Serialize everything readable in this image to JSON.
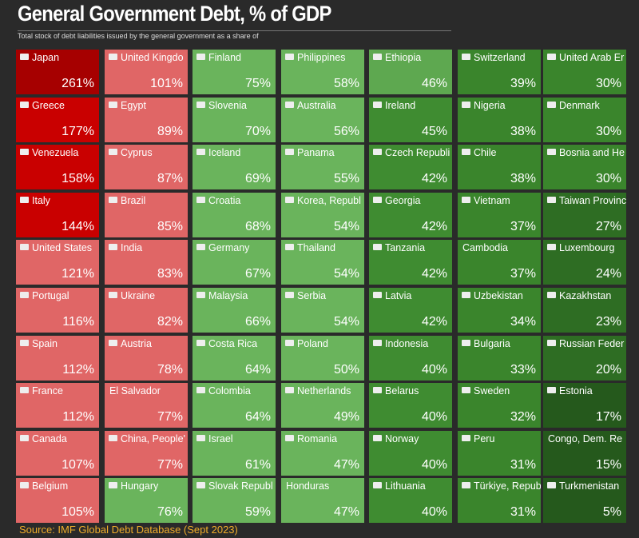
{
  "header": {
    "title": "General Government Debt, % of GDP",
    "subtitle": "Total stock of debt liabilities issued by the general government as a share of"
  },
  "grid": {
    "columns": [
      [
        {
          "name": "Japan",
          "value": "261%",
          "color": "#a60000"
        },
        {
          "name": "Greece",
          "value": "177%",
          "color": "#c90000"
        },
        {
          "name": "Venezuela",
          "value": "158%",
          "color": "#c90000"
        },
        {
          "name": "Italy",
          "value": "144%",
          "color": "#c90000"
        },
        {
          "name": "United States",
          "value": "121%",
          "color": "#e06666"
        },
        {
          "name": "Portugal",
          "value": "116%",
          "color": "#e06666"
        },
        {
          "name": "Spain",
          "value": "112%",
          "color": "#e06666"
        },
        {
          "name": "France",
          "value": "112%",
          "color": "#e06666"
        },
        {
          "name": "Canada",
          "value": "107%",
          "color": "#e06666"
        },
        {
          "name": "Belgium",
          "value": "105%",
          "color": "#e06666"
        }
      ],
      [
        {
          "name": "United Kingdo",
          "value": "101%",
          "color": "#e06666"
        },
        {
          "name": "Egypt",
          "value": "89%",
          "color": "#e06666"
        },
        {
          "name": "Cyprus",
          "value": "87%",
          "color": "#e06666"
        },
        {
          "name": "Brazil",
          "value": "85%",
          "color": "#e06666"
        },
        {
          "name": "India",
          "value": "83%",
          "color": "#e06666"
        },
        {
          "name": "Ukraine",
          "value": "82%",
          "color": "#e06666"
        },
        {
          "name": "Austria",
          "value": "78%",
          "color": "#e06666"
        },
        {
          "name": "El Salvador",
          "value": "77%",
          "color": "#e06666"
        },
        {
          "name": "China, People'",
          "value": "77%",
          "color": "#e06666"
        },
        {
          "name": "Hungary",
          "value": "76%",
          "color": "#6ab45c"
        }
      ],
      [
        {
          "name": "Finland",
          "value": "75%",
          "color": "#6ab45c"
        },
        {
          "name": "Slovenia",
          "value": "70%",
          "color": "#6ab45c"
        },
        {
          "name": "Iceland",
          "value": "69%",
          "color": "#6ab45c"
        },
        {
          "name": "Croatia",
          "value": "68%",
          "color": "#6ab45c"
        },
        {
          "name": "Germany",
          "value": "67%",
          "color": "#6ab45c"
        },
        {
          "name": "Malaysia",
          "value": "66%",
          "color": "#6ab45c"
        },
        {
          "name": "Costa Rica",
          "value": "64%",
          "color": "#6ab45c"
        },
        {
          "name": "Colombia",
          "value": "64%",
          "color": "#6ab45c"
        },
        {
          "name": "Israel",
          "value": "61%",
          "color": "#6ab45c"
        },
        {
          "name": "Slovak Republ",
          "value": "59%",
          "color": "#6ab45c"
        }
      ],
      [
        {
          "name": "Philippines",
          "value": "58%",
          "color": "#6ab45c"
        },
        {
          "name": "Australia",
          "value": "56%",
          "color": "#6ab45c"
        },
        {
          "name": "Panama",
          "value": "55%",
          "color": "#6ab45c"
        },
        {
          "name": "Korea, Republ",
          "value": "54%",
          "color": "#6ab45c"
        },
        {
          "name": "Thailand",
          "value": "54%",
          "color": "#6ab45c"
        },
        {
          "name": "Serbia",
          "value": "54%",
          "color": "#6ab45c"
        },
        {
          "name": "Poland",
          "value": "50%",
          "color": "#6ab45c"
        },
        {
          "name": "Netherlands",
          "value": "49%",
          "color": "#6ab45c"
        },
        {
          "name": "Romania",
          "value": "47%",
          "color": "#6ab45c"
        },
        {
          "name": "Honduras",
          "value": "47%",
          "color": "#6ab45c"
        }
      ],
      [
        {
          "name": "Ethiopia",
          "value": "46%",
          "color": "#5ea850"
        },
        {
          "name": "Ireland",
          "value": "45%",
          "color": "#3f8c31"
        },
        {
          "name": "Czech Republi",
          "value": "42%",
          "color": "#3f8c31"
        },
        {
          "name": "Georgia",
          "value": "42%",
          "color": "#3f8c31"
        },
        {
          "name": "Tanzania",
          "value": "42%",
          "color": "#3f8c31"
        },
        {
          "name": "Latvia",
          "value": "42%",
          "color": "#3f8c31"
        },
        {
          "name": "Indonesia",
          "value": "40%",
          "color": "#3f8c31"
        },
        {
          "name": "Belarus",
          "value": "40%",
          "color": "#3f8c31"
        },
        {
          "name": "Norway",
          "value": "40%",
          "color": "#3f8c31"
        },
        {
          "name": "Lithuania",
          "value": "40%",
          "color": "#3f8c31"
        }
      ],
      [
        {
          "name": "Switzerland",
          "value": "39%",
          "color": "#3a852c"
        },
        {
          "name": "Nigeria",
          "value": "38%",
          "color": "#3a852c"
        },
        {
          "name": "Chile",
          "value": "38%",
          "color": "#3a852c"
        },
        {
          "name": "Vietnam",
          "value": "37%",
          "color": "#3a852c"
        },
        {
          "name": "Cambodia",
          "value": "37%",
          "color": "#3a852c"
        },
        {
          "name": "Uzbekistan",
          "value": "34%",
          "color": "#3a852c"
        },
        {
          "name": "Bulgaria",
          "value": "33%",
          "color": "#3a852c"
        },
        {
          "name": "Sweden",
          "value": "32%",
          "color": "#3a852c"
        },
        {
          "name": "Peru",
          "value": "31%",
          "color": "#3a852c"
        },
        {
          "name": "Türkiye, Repub",
          "value": "31%",
          "color": "#3a852c"
        }
      ],
      [
        {
          "name": "United Arab Er",
          "value": "30%",
          "color": "#3a852c"
        },
        {
          "name": "Denmark",
          "value": "30%",
          "color": "#3a852c"
        },
        {
          "name": "Bosnia and He",
          "value": "30%",
          "color": "#3a852c"
        },
        {
          "name": "Taiwan Provinc",
          "value": "27%",
          "color": "#2e6d23"
        },
        {
          "name": "Luxembourg",
          "value": "24%",
          "color": "#2e6d23"
        },
        {
          "name": "Kazakhstan",
          "value": "23%",
          "color": "#2e6d23"
        },
        {
          "name": "Russian Feder",
          "value": "20%",
          "color": "#2e6d23"
        },
        {
          "name": "Estonia",
          "value": "17%",
          "color": "#25591c"
        },
        {
          "name": "Congo, Dem. Re",
          "value": "15%",
          "color": "#25591c"
        },
        {
          "name": "Turkmenistan",
          "value": "5%",
          "color": "#25591c"
        }
      ]
    ]
  },
  "footer": {
    "source": "Source: IMF Global Debt Database (Sept 2023)"
  }
}
